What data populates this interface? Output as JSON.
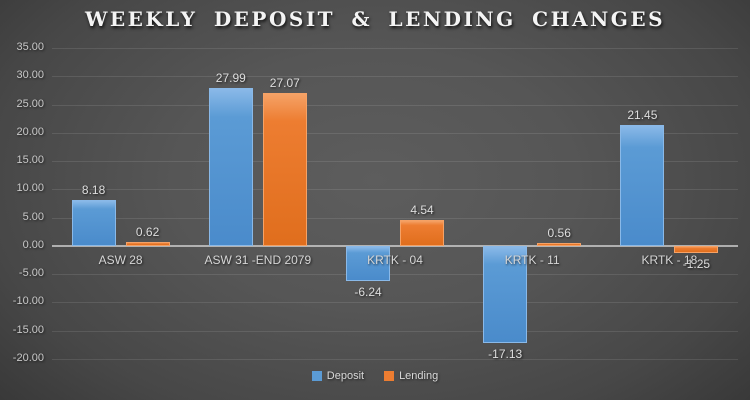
{
  "chart_data": {
    "type": "bar",
    "title": "WEEKLY DEPOSIT & LENDING CHANGES",
    "categories": [
      "ASW 28",
      "ASW 31 -END 2079",
      "KRTK - 04",
      "KRTK - 11",
      "KRTK - 18"
    ],
    "series": [
      {
        "name": "Deposit",
        "color": "#5B9BD5",
        "color_light": "#8ab9e8",
        "color_dark": "#4a8bcb",
        "values": [
          8.18,
          27.99,
          -6.24,
          -17.13,
          21.45
        ]
      },
      {
        "name": "Lending",
        "color": "#ED7D31",
        "color_light": "#f5a266",
        "color_dark": "#e06e1d",
        "values": [
          0.62,
          27.07,
          4.54,
          0.56,
          -1.25
        ]
      }
    ],
    "y_axis": {
      "min": -20,
      "max": 35,
      "step": 5,
      "ticks": [
        "35.00",
        "30.00",
        "25.00",
        "20.00",
        "15.00",
        "10.00",
        "5.00",
        "0.00",
        "-5.00",
        "-10.00",
        "-15.00",
        "-20.00"
      ]
    },
    "data_labels": {
      "shown": true,
      "format": "two_decimals"
    },
    "legend": {
      "position": "bottom",
      "entries": [
        "Deposit",
        "Lending"
      ]
    },
    "grid": "horizontal",
    "background": {
      "center": "#5d5d5d",
      "edge": "#242424",
      "text": "#d6d6d6"
    }
  }
}
